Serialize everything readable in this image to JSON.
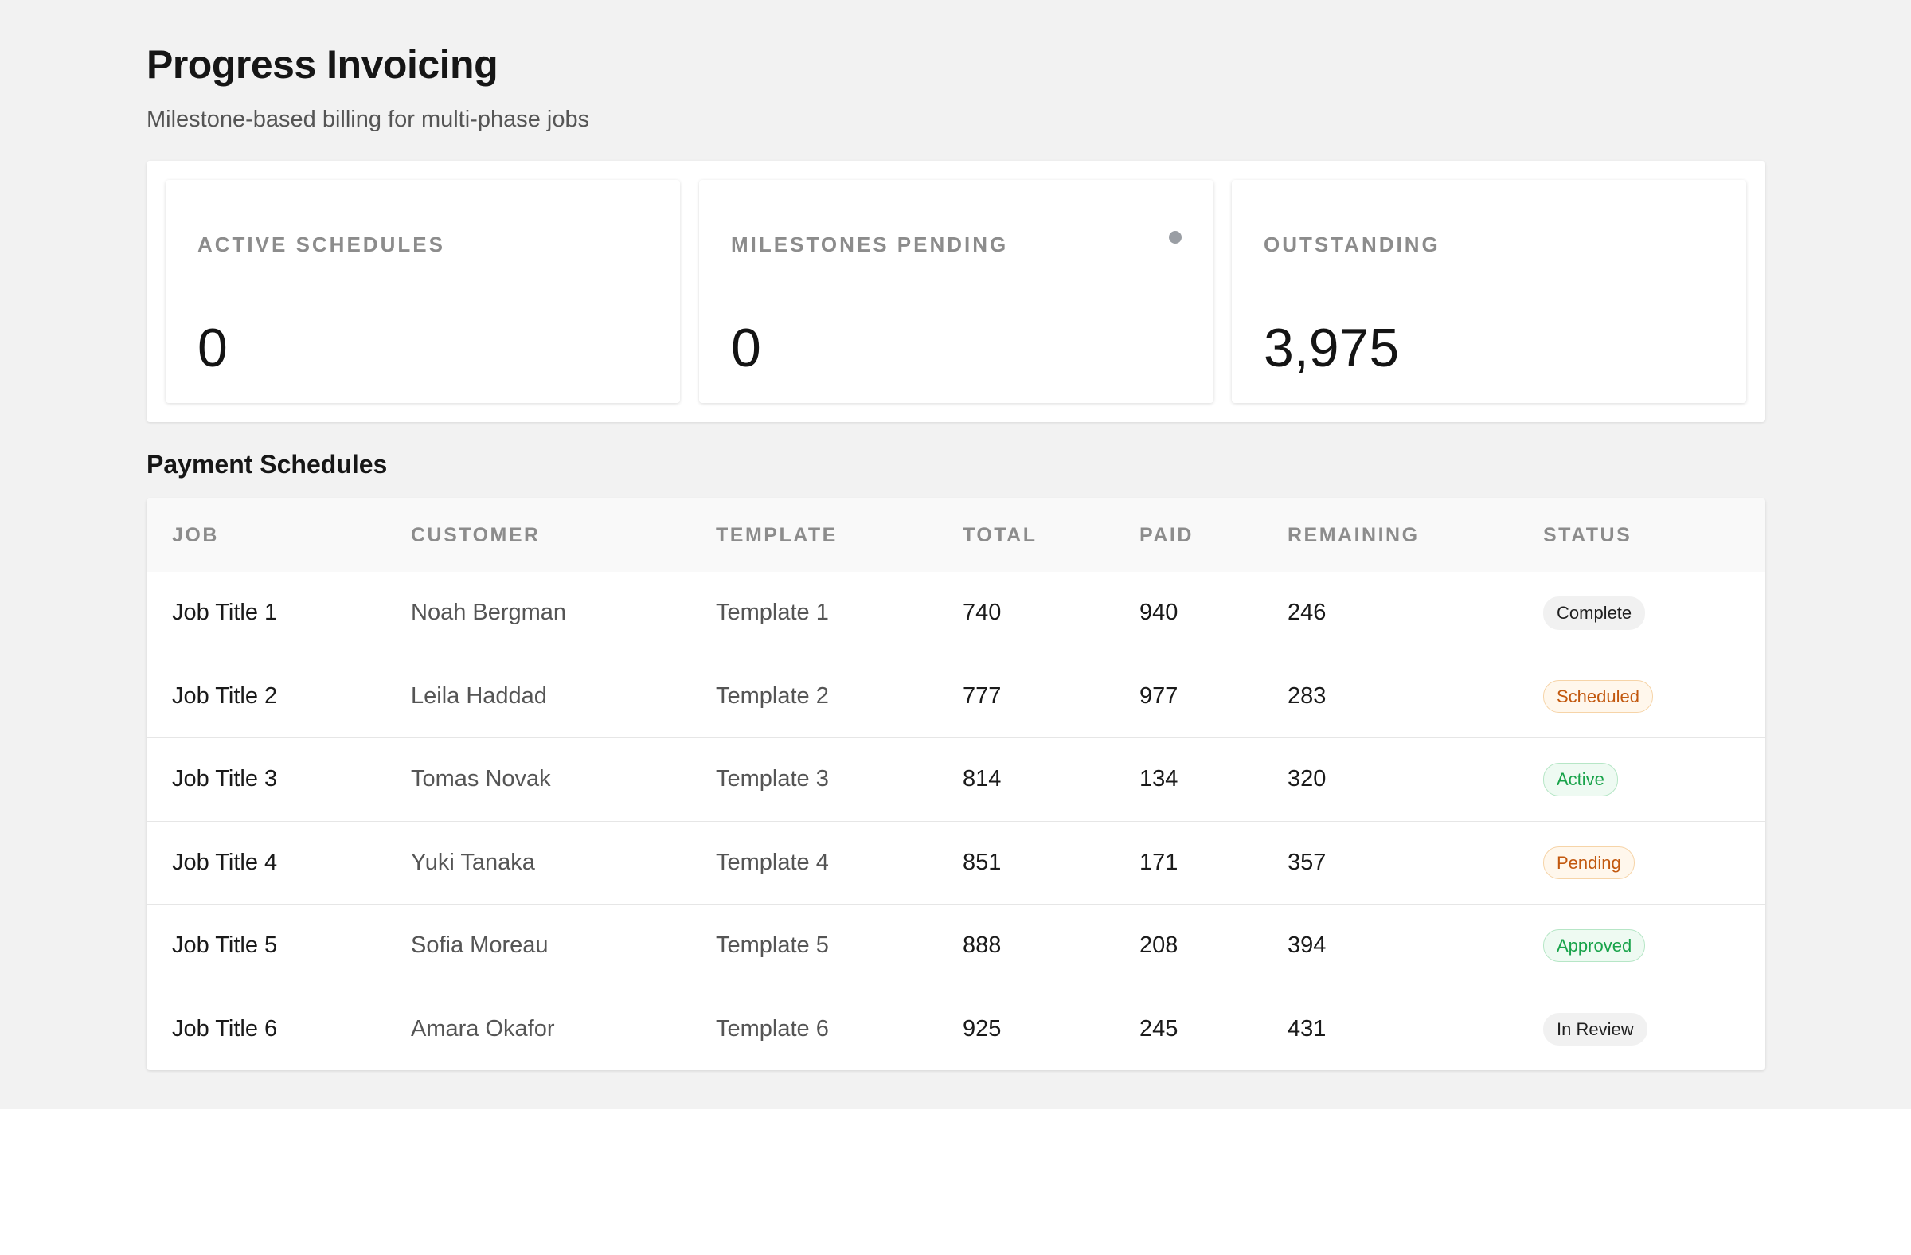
{
  "header": {
    "title": "Progress Invoicing",
    "subtitle": "Milestone-based billing for multi-phase jobs"
  },
  "stats": [
    {
      "label": "ACTIVE SCHEDULES",
      "value": "0"
    },
    {
      "label": "MILESTONES PENDING",
      "value": "0"
    },
    {
      "label": "OUTSTANDING",
      "value": "3,975"
    }
  ],
  "schedules": {
    "title": "Payment Schedules",
    "columns": [
      "JOB",
      "CUSTOMER",
      "TEMPLATE",
      "TOTAL",
      "PAID",
      "REMAINING",
      "STATUS"
    ],
    "rows": [
      {
        "job": "Job Title 1",
        "customer": "Noah Bergman",
        "template": "Template 1",
        "total": "740",
        "paid": "940",
        "remaining": "246",
        "status": "Complete"
      },
      {
        "job": "Job Title 2",
        "customer": "Leila Haddad",
        "template": "Template 2",
        "total": "777",
        "paid": "977",
        "remaining": "283",
        "status": "Scheduled"
      },
      {
        "job": "Job Title 3",
        "customer": "Tomas Novak",
        "template": "Template 3",
        "total": "814",
        "paid": "134",
        "remaining": "320",
        "status": "Active"
      },
      {
        "job": "Job Title 4",
        "customer": "Yuki Tanaka",
        "template": "Template 4",
        "total": "851",
        "paid": "171",
        "remaining": "357",
        "status": "Pending"
      },
      {
        "job": "Job Title 5",
        "customer": "Sofia Moreau",
        "template": "Template 5",
        "total": "888",
        "paid": "208",
        "remaining": "394",
        "status": "Approved"
      },
      {
        "job": "Job Title 6",
        "customer": "Amara Okafor",
        "template": "Template 6",
        "total": "925",
        "paid": "245",
        "remaining": "431",
        "status": "In Review"
      }
    ]
  },
  "colors": {
    "page_background": "#f2f2f2",
    "status_neutral": "#f1f1f1",
    "status_warning": "#c2580e",
    "status_success": "#18a34a",
    "indicator_dot": "#9a9ea4"
  }
}
